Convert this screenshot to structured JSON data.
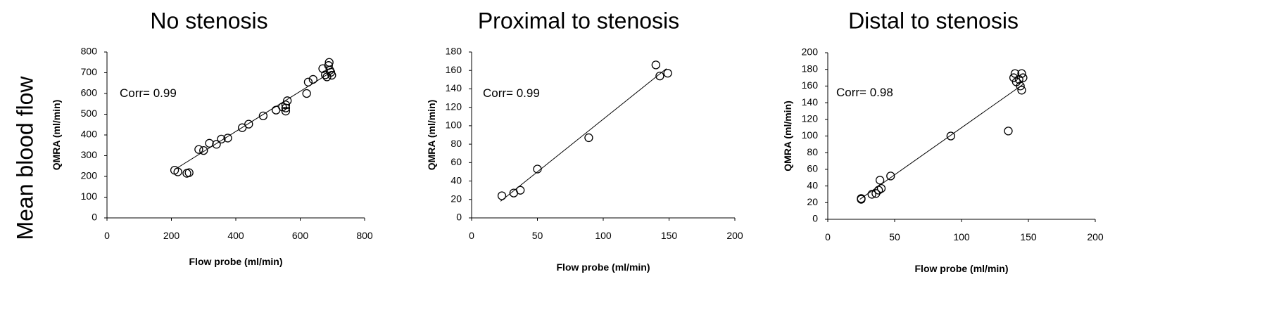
{
  "row_label": "Mean blood flow",
  "chart_data": [
    {
      "type": "scatter",
      "title": "No stenosis",
      "xlabel": "Flow probe (ml/min)",
      "ylabel": "QMRA (ml/min)",
      "annotation": "Corr= 0.99",
      "xlim": [
        0,
        800
      ],
      "ylim": [
        0,
        800
      ],
      "xticks": [
        0,
        200,
        400,
        600,
        800
      ],
      "yticks": [
        0,
        100,
        200,
        300,
        400,
        500,
        600,
        700,
        800
      ],
      "x": [
        210,
        220,
        248,
        255,
        285,
        300,
        318,
        340,
        355,
        375,
        420,
        440,
        485,
        525,
        545,
        555,
        555,
        555,
        560,
        620,
        625,
        640,
        670,
        678,
        683,
        688,
        690,
        692,
        695,
        698
      ],
      "y": [
        230,
        222,
        215,
        218,
        330,
        325,
        360,
        355,
        380,
        385,
        435,
        452,
        492,
        520,
        535,
        530,
        545,
        515,
        565,
        600,
        655,
        668,
        720,
        690,
        680,
        735,
        750,
        712,
        702,
        688
      ],
      "fit": {
        "x": [
          210,
          700
        ],
        "y": [
          233,
          707
        ]
      },
      "grid": false
    },
    {
      "type": "scatter",
      "title": "Proximal to stenosis",
      "xlabel": "Flow probe (ml/min)",
      "ylabel": "QMRA (ml/min)",
      "annotation": "Corr= 0.99",
      "xlim": [
        0,
        200
      ],
      "ylim": [
        0,
        180
      ],
      "xticks": [
        0,
        50,
        100,
        150,
        200
      ],
      "yticks": [
        0,
        20,
        40,
        60,
        80,
        100,
        120,
        140,
        160,
        180
      ],
      "x": [
        23,
        32,
        37,
        50,
        89,
        140,
        143,
        149
      ],
      "y": [
        24,
        27,
        30,
        53,
        87,
        166,
        154,
        157
      ],
      "fit": {
        "x": [
          22,
          148
        ],
        "y": [
          18,
          162
        ]
      },
      "grid": false
    },
    {
      "type": "scatter",
      "title": "Distal to stenosis",
      "xlabel": "Flow probe (ml/min)",
      "ylabel": "QMRA (ml/min)",
      "annotation": "Corr= 0.98",
      "xlim": [
        0,
        200
      ],
      "ylim": [
        0,
        200
      ],
      "xticks": [
        0,
        50,
        100,
        150,
        200
      ],
      "yticks": [
        0,
        20,
        40,
        60,
        80,
        100,
        120,
        140,
        160,
        180,
        200
      ],
      "x": [
        25,
        25,
        33,
        36,
        38,
        39,
        40,
        47,
        92,
        135,
        139,
        140,
        141,
        143,
        144,
        145,
        145,
        146
      ],
      "y": [
        24,
        25,
        30,
        31,
        35,
        47,
        37,
        52,
        100,
        106,
        170,
        175,
        165,
        168,
        160,
        175,
        155,
        170
      ],
      "fit": {
        "x": [
          24,
          146
        ],
        "y": [
          24,
          162
        ]
      },
      "grid": false
    }
  ]
}
